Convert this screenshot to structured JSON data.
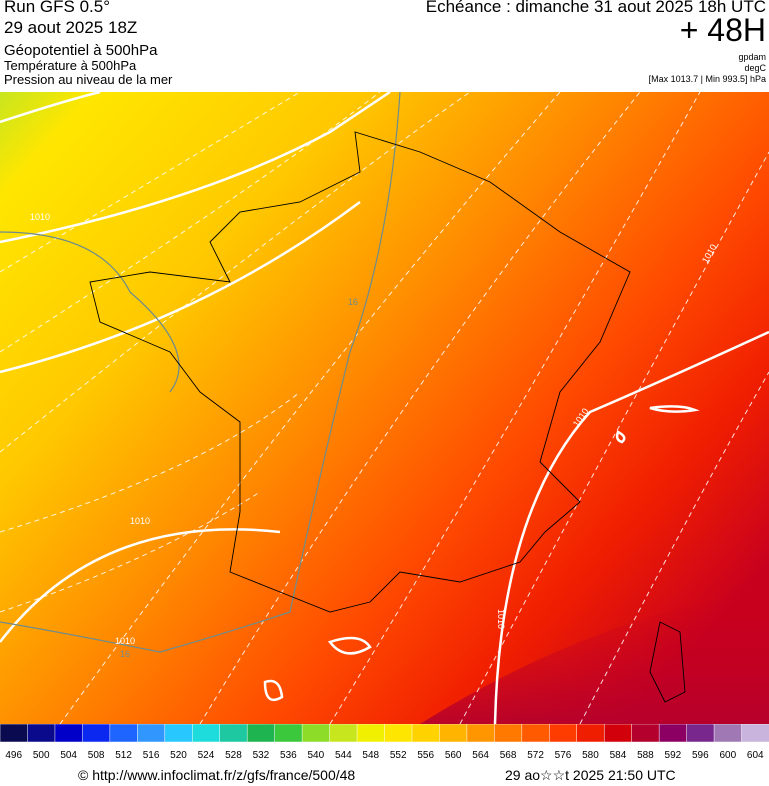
{
  "header": {
    "run": "Run GFS 0.5°",
    "date": "29 aout 2025 18Z",
    "param1": "Géopotentiel à 500hPa",
    "param2": "Température à 500hPa",
    "param3": "Pression au niveau de la mer",
    "echeance": "Echéance : dimanche 31 aout 2025 18h UTC",
    "lead": "+ 48H",
    "unit1": "gpdam",
    "unit2": "degC",
    "range": "[Max 1013.7 | Min 993.5] hPa"
  },
  "map": {
    "labels": [
      "1010",
      "1010",
      "1010",
      "1010",
      "1010",
      "1010",
      "16",
      "16"
    ]
  },
  "colorbar": {
    "values": [
      496,
      500,
      504,
      508,
      512,
      516,
      520,
      524,
      528,
      532,
      536,
      540,
      544,
      548,
      552,
      556,
      560,
      564,
      568,
      572,
      576,
      580,
      584,
      588,
      592,
      596,
      600,
      604
    ],
    "colors": [
      "#0a0a50",
      "#0a0a8c",
      "#0000c8",
      "#0a28f0",
      "#1e64ff",
      "#3296ff",
      "#28c8ff",
      "#1edcdc",
      "#1ec8a0",
      "#1eb450",
      "#3cc83c",
      "#8cdc28",
      "#c8e61e",
      "#f0f000",
      "#ffe600",
      "#ffd200",
      "#ffb400",
      "#ff9600",
      "#ff7800",
      "#ff5a00",
      "#ff3c00",
      "#f01e00",
      "#d2000a",
      "#b4002d",
      "#8c0064",
      "#78288c",
      "#a078b4",
      "#c8b4dc"
    ]
  },
  "footer": {
    "source": "© http://www.infoclimat.fr/z/gfs/france/500/48",
    "timestamp": "29 ao☆☆t 2025 21:50 UTC"
  }
}
